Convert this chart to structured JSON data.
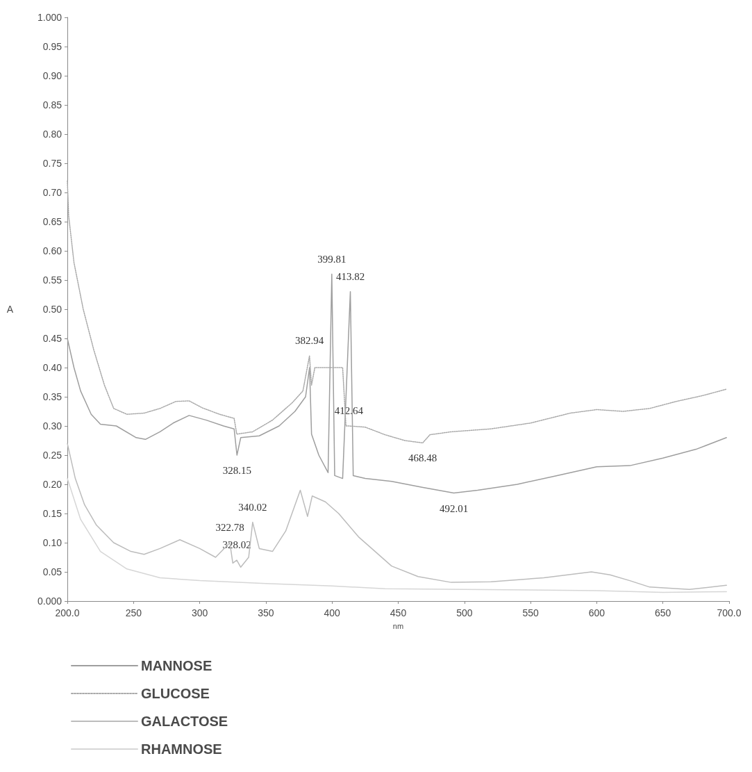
{
  "chart_data": {
    "type": "line",
    "xlabel": "nm",
    "ylabel": "A",
    "xlim": [
      200,
      700
    ],
    "xticks": [
      {
        "value": 200,
        "label": "200.0"
      },
      250,
      300,
      350,
      400,
      450,
      500,
      550,
      600,
      650,
      {
        "value": 700,
        "label": "700.0"
      }
    ],
    "ylim": [
      0,
      1
    ],
    "yticks": [
      {
        "value": 0,
        "label": "0.000"
      },
      0.05,
      {
        "value": 0.1,
        "label": "0.10"
      },
      0.15,
      {
        "value": 0.2,
        "label": "0.20"
      },
      0.25,
      {
        "value": 0.3,
        "label": "0.30"
      },
      0.35,
      {
        "value": 0.4,
        "label": "0.40"
      },
      0.45,
      {
        "value": 0.5,
        "label": "0.50"
      },
      0.55,
      {
        "value": 0.6,
        "label": "0.60"
      },
      0.65,
      {
        "value": 0.7,
        "label": "0.70"
      },
      0.75,
      {
        "value": 0.8,
        "label": "0.80"
      },
      0.85,
      {
        "value": 0.9,
        "label": "0.90"
      },
      0.95,
      {
        "value": 1,
        "label": "1.000"
      }
    ],
    "grid": false,
    "legend": "bottom left",
    "marker": "none",
    "series": [
      {
        "name": "MANNOSE",
        "color": "#9e9e9e",
        "line_style": "solid",
        "x": [
          200,
          205,
          210,
          218,
          225,
          237,
          252,
          259,
          270,
          280,
          292,
          305,
          318,
          326,
          328.15,
          331,
          345,
          360,
          372,
          380,
          383,
          384.5,
          390,
          397,
          399.81,
          402,
          408,
          413.82,
          416,
          425,
          445,
          468,
          492.01,
          510,
          540,
          570,
          600,
          625,
          650,
          675,
          698
        ],
        "values": [
          0.45,
          0.4,
          0.36,
          0.32,
          0.303,
          0.3,
          0.28,
          0.277,
          0.29,
          0.305,
          0.318,
          0.31,
          0.3,
          0.295,
          0.25,
          0.28,
          0.283,
          0.3,
          0.325,
          0.35,
          0.4,
          0.286,
          0.25,
          0.22,
          0.56,
          0.215,
          0.21,
          0.53,
          0.215,
          0.21,
          0.205,
          0.195,
          0.185,
          0.19,
          0.2,
          0.215,
          0.23,
          0.232,
          0.245,
          0.26,
          0.28
        ]
      },
      {
        "name": "GLUCOSE",
        "color": "#a8a8a8",
        "line_style": "dotted",
        "x": [
          200,
          201,
          205,
          212,
          220,
          228,
          235,
          245,
          258,
          270,
          282,
          292,
          302,
          315,
          326,
          328,
          340,
          355,
          370,
          378,
          382.94,
          384.5,
          387,
          398,
          408,
          410.5,
          412.64,
          425,
          440,
          455,
          468.48,
          474,
          490,
          520,
          550,
          580,
          600,
          620,
          640,
          660,
          680,
          698
        ],
        "values": [
          0.72,
          0.66,
          0.58,
          0.5,
          0.43,
          0.37,
          0.33,
          0.32,
          0.322,
          0.33,
          0.342,
          0.343,
          0.331,
          0.32,
          0.313,
          0.286,
          0.29,
          0.31,
          0.34,
          0.36,
          0.42,
          0.37,
          0.4,
          0.4,
          0.4,
          0.3,
          0.3,
          0.298,
          0.285,
          0.275,
          0.271,
          0.285,
          0.29,
          0.295,
          0.305,
          0.322,
          0.328,
          0.325,
          0.33,
          0.342,
          0.352,
          0.363
        ]
      },
      {
        "name": "GALACTOSE",
        "color": "#bcbcbc",
        "line_style": "solid",
        "x": [
          200,
          206,
          213,
          222,
          235,
          248,
          258,
          270,
          285,
          300,
          312,
          322.78,
          325,
          328.02,
          331,
          337,
          340.02,
          345,
          355,
          365,
          376,
          381.5,
          385,
          395,
          405,
          420,
          430,
          445,
          465,
          490,
          520,
          560,
          596,
          610,
          625,
          640,
          670,
          698
        ],
        "values": [
          0.27,
          0.21,
          0.165,
          0.13,
          0.1,
          0.085,
          0.08,
          0.09,
          0.105,
          0.09,
          0.075,
          0.1,
          0.065,
          0.07,
          0.058,
          0.075,
          0.135,
          0.09,
          0.085,
          0.12,
          0.19,
          0.145,
          0.18,
          0.17,
          0.15,
          0.11,
          0.09,
          0.06,
          0.042,
          0.032,
          0.033,
          0.04,
          0.05,
          0.045,
          0.035,
          0.024,
          0.02,
          0.027
        ]
      },
      {
        "name": "RHAMNOSE",
        "color": "#d6d6d6",
        "line_style": "solid",
        "x": [
          200,
          210,
          225,
          245,
          270,
          300,
          350,
          400,
          440,
          500,
          600,
          650,
          698
        ],
        "values": [
          0.21,
          0.14,
          0.085,
          0.055,
          0.04,
          0.035,
          0.03,
          0.026,
          0.021,
          0.02,
          0.018,
          0.015,
          0.016
        ]
      }
    ],
    "annotations": [
      {
        "text": "399.81",
        "x": 399.81,
        "y": 0.56
      },
      {
        "text": "413.82",
        "x": 413.82,
        "y": 0.53
      },
      {
        "text": "382.94",
        "x": 382.94,
        "y": 0.42
      },
      {
        "text": "412.64",
        "x": 412.64,
        "y": 0.3
      },
      {
        "text": "328.15",
        "x": 328.15,
        "y": 0.25
      },
      {
        "text": "468.48",
        "x": 468.48,
        "y": 0.271
      },
      {
        "text": "340.02",
        "x": 340.02,
        "y": 0.135
      },
      {
        "text": "492.01",
        "x": 492.01,
        "y": 0.185
      },
      {
        "text": "322.78",
        "x": 322.78,
        "y": 0.1
      },
      {
        "text": "328.02",
        "x": 328.02,
        "y": 0.07
      }
    ]
  }
}
